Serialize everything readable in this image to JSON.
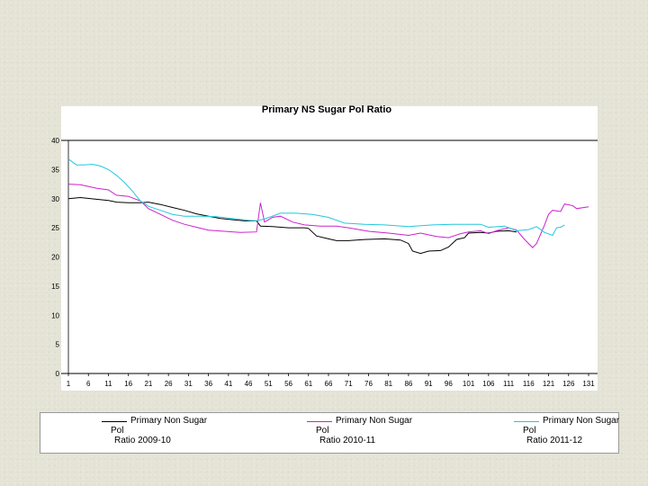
{
  "chart_data": {
    "type": "line",
    "title": "Primary NS Sugar Pol Ratio",
    "xlabel": "",
    "ylabel": "",
    "xlim": [
      1,
      131
    ],
    "ylim": [
      0,
      40
    ],
    "xticks": [
      1,
      6,
      11,
      16,
      21,
      26,
      31,
      36,
      41,
      46,
      51,
      56,
      61,
      66,
      71,
      76,
      81,
      86,
      91,
      96,
      101,
      106,
      111,
      116,
      121,
      126,
      131
    ],
    "yticks": [
      0,
      5,
      10,
      15,
      20,
      25,
      30,
      35,
      40
    ],
    "grid": false,
    "legend_position": "bottom",
    "series": [
      {
        "name": "Primary Non Sugar Pol Ratio 2009-10",
        "legend_lines": [
          "Primary Non Sugar",
          "Pol",
          "Ratio 2009-10"
        ],
        "color": "#000000",
        "points": [
          [
            1,
            30
          ],
          [
            4,
            30.2
          ],
          [
            8,
            29.9
          ],
          [
            11,
            29.7
          ],
          [
            13,
            29.4
          ],
          [
            16,
            29.3
          ],
          [
            19,
            29.3
          ],
          [
            21,
            29.4
          ],
          [
            24,
            29
          ],
          [
            27,
            28.5
          ],
          [
            30,
            28
          ],
          [
            33,
            27.4
          ],
          [
            36,
            27
          ],
          [
            39,
            26.6
          ],
          [
            42,
            26.4
          ],
          [
            45,
            26.2
          ],
          [
            48,
            26.2
          ],
          [
            49,
            25.3
          ],
          [
            52,
            25.2
          ],
          [
            56,
            25
          ],
          [
            60,
            25
          ],
          [
            61,
            24.9
          ],
          [
            63,
            23.6
          ],
          [
            66,
            23.1
          ],
          [
            68,
            22.8
          ],
          [
            71,
            22.8
          ],
          [
            75,
            23
          ],
          [
            80,
            23.1
          ],
          [
            84,
            22.9
          ],
          [
            86,
            22.3
          ],
          [
            87,
            21
          ],
          [
            89,
            20.6
          ],
          [
            91,
            21
          ],
          [
            94,
            21.1
          ],
          [
            96,
            21.7
          ],
          [
            98,
            23
          ],
          [
            100,
            23.3
          ],
          [
            101,
            24.1
          ],
          [
            104,
            24.2
          ],
          [
            106,
            24.1
          ],
          [
            108,
            24.4
          ],
          [
            111,
            24.5
          ],
          [
            113,
            24.3
          ]
        ]
      },
      {
        "name": "Primary Non Sugar Pol Ratio 2010-11",
        "legend_lines": [
          "Primary Non Sugar",
          "Pol",
          "Ratio 2010-11"
        ],
        "color": "#cc22cc",
        "points": [
          [
            1,
            32.5
          ],
          [
            4,
            32.4
          ],
          [
            8,
            31.8
          ],
          [
            11,
            31.5
          ],
          [
            13,
            30.6
          ],
          [
            16,
            30.4
          ],
          [
            19,
            29.6
          ],
          [
            21,
            28.3
          ],
          [
            24,
            27.3
          ],
          [
            27,
            26.3
          ],
          [
            30,
            25.6
          ],
          [
            33,
            25.1
          ],
          [
            36,
            24.6
          ],
          [
            40,
            24.4
          ],
          [
            44,
            24.2
          ],
          [
            48,
            24.3
          ],
          [
            49,
            29.3
          ],
          [
            50,
            26
          ],
          [
            52,
            26.8
          ],
          [
            54,
            27
          ],
          [
            57,
            26
          ],
          [
            60,
            25.5
          ],
          [
            64,
            25.3
          ],
          [
            68,
            25.3
          ],
          [
            71,
            25
          ],
          [
            76,
            24.4
          ],
          [
            81,
            24.1
          ],
          [
            86,
            23.7
          ],
          [
            89,
            24.1
          ],
          [
            93,
            23.5
          ],
          [
            96,
            23.3
          ],
          [
            99,
            24
          ],
          [
            101,
            24.3
          ],
          [
            104,
            24.5
          ],
          [
            106,
            24
          ],
          [
            108,
            24.5
          ],
          [
            111,
            25
          ],
          [
            113,
            24.6
          ],
          [
            115,
            23
          ],
          [
            117,
            21.6
          ],
          [
            118,
            22.3
          ],
          [
            120,
            25.5
          ],
          [
            121,
            27.3
          ],
          [
            122,
            28
          ],
          [
            124,
            27.8
          ],
          [
            125,
            29.1
          ],
          [
            127,
            28.8
          ],
          [
            128,
            28.3
          ],
          [
            131,
            28.6
          ]
        ]
      },
      {
        "name": "Primary Non Sugar Pol Ratio 2011-12",
        "legend_lines": [
          "Primary Non Sugar",
          "Pol",
          "Ratio 2011-12"
        ],
        "color": "#22c8dd",
        "points": [
          [
            1,
            36.8
          ],
          [
            3,
            35.8
          ],
          [
            5,
            35.8
          ],
          [
            7,
            35.9
          ],
          [
            9,
            35.6
          ],
          [
            11,
            35
          ],
          [
            13,
            34
          ],
          [
            15,
            32.8
          ],
          [
            17,
            31.3
          ],
          [
            19,
            29.6
          ],
          [
            21,
            28.7
          ],
          [
            24,
            28
          ],
          [
            27,
            27.3
          ],
          [
            30,
            27
          ],
          [
            34,
            27
          ],
          [
            38,
            26.9
          ],
          [
            42,
            26.6
          ],
          [
            46,
            26.3
          ],
          [
            48,
            26.2
          ],
          [
            50,
            26.5
          ],
          [
            54,
            27.5
          ],
          [
            58,
            27.5
          ],
          [
            62,
            27.3
          ],
          [
            66,
            26.8
          ],
          [
            70,
            25.8
          ],
          [
            75,
            25.6
          ],
          [
            80,
            25.5
          ],
          [
            86,
            25.2
          ],
          [
            92,
            25.5
          ],
          [
            97,
            25.6
          ],
          [
            101,
            25.6
          ],
          [
            104,
            25.6
          ],
          [
            106,
            25.1
          ],
          [
            110,
            25.3
          ],
          [
            113,
            24.5
          ],
          [
            116,
            24.7
          ],
          [
            118,
            25.2
          ],
          [
            120,
            24.2
          ],
          [
            122,
            23.7
          ],
          [
            123,
            25
          ],
          [
            124,
            25.1
          ],
          [
            125,
            25.5
          ]
        ]
      }
    ]
  }
}
